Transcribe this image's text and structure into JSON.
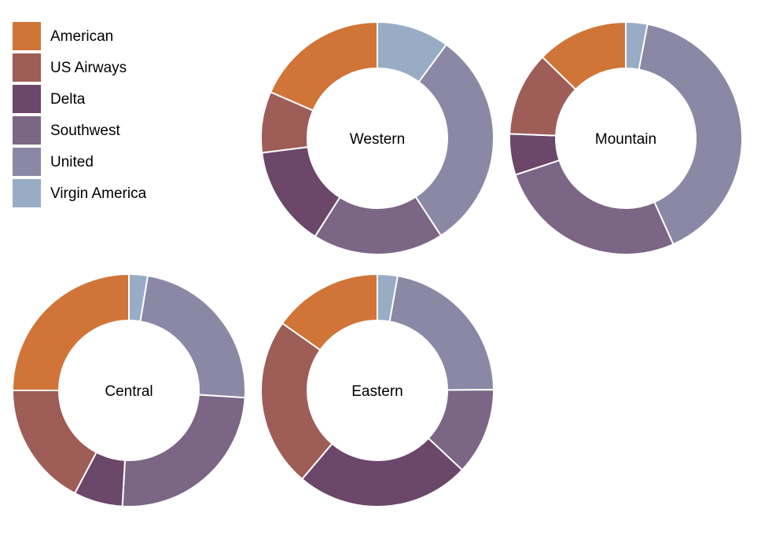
{
  "chart_data": {
    "type": "pie",
    "variant": "donut",
    "legend_position": "top-left",
    "legend": [
      {
        "name": "American",
        "color": "#d07438"
      },
      {
        "name": "US Airways",
        "color": "#9e5d57"
      },
      {
        "name": "Delta",
        "color": "#6b4769"
      },
      {
        "name": "Southwest",
        "color": "#7b6686"
      },
      {
        "name": "United",
        "color": "#8a88a5"
      },
      {
        "name": "Virgin America",
        "color": "#98acc5"
      }
    ],
    "charts": [
      {
        "label": "Western",
        "slices": [
          {
            "series": "Virgin America",
            "percent": 10.1
          },
          {
            "series": "United",
            "percent": 30.7
          },
          {
            "series": "Southwest",
            "percent": 18.2
          },
          {
            "series": "Delta",
            "percent": 14.0
          },
          {
            "series": "US Airways",
            "percent": 8.5
          },
          {
            "series": "American",
            "percent": 18.5
          }
        ]
      },
      {
        "label": "Mountain",
        "slices": [
          {
            "series": "Virgin America",
            "percent": 3.0
          },
          {
            "series": "United",
            "percent": 40.3
          },
          {
            "series": "Southwest",
            "percent": 26.6
          },
          {
            "series": "Delta",
            "percent": 5.7
          },
          {
            "series": "US Airways",
            "percent": 11.7
          },
          {
            "series": "American",
            "percent": 12.7
          }
        ]
      },
      {
        "label": "Central",
        "slices": [
          {
            "series": "Virgin America",
            "percent": 2.6
          },
          {
            "series": "United",
            "percent": 23.4
          },
          {
            "series": "Southwest",
            "percent": 24.9
          },
          {
            "series": "Delta",
            "percent": 6.8
          },
          {
            "series": "US Airways",
            "percent": 17.3
          },
          {
            "series": "American",
            "percent": 25.0
          }
        ]
      },
      {
        "label": "Eastern",
        "slices": [
          {
            "series": "Virgin America",
            "percent": 2.8
          },
          {
            "series": "United",
            "percent": 22.1
          },
          {
            "series": "Southwest",
            "percent": 12.1
          },
          {
            "series": "Delta",
            "percent": 24.2
          },
          {
            "series": "US Airways",
            "percent": 23.6
          },
          {
            "series": "American",
            "percent": 15.2
          }
        ]
      }
    ]
  }
}
